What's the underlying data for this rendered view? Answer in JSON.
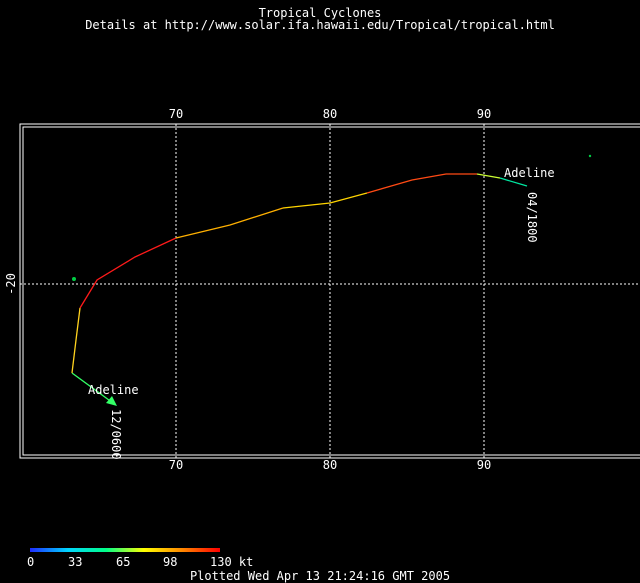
{
  "header": {
    "title": "Tropical Cyclones",
    "subtitle": "Details at http://www.solar.ifa.hawaii.edu/Tropical/tropical.html"
  },
  "axes": {
    "lon_ticks_top": [
      "70",
      "80",
      "90"
    ],
    "lon_ticks_bottom": [
      "70",
      "80",
      "90"
    ],
    "lat_tick": "-20"
  },
  "storm": {
    "name_end": "Adeline",
    "name_start": "Adeline",
    "label_end": "04/1800",
    "label_start": "12/0600"
  },
  "legend": {
    "scale_labels": [
      "0",
      "33",
      "65",
      "98",
      "130 kt"
    ],
    "colors": [
      "#1e2cff",
      "#00d6ff",
      "#00ff88",
      "#ffff00",
      "#ff8800",
      "#ff0000"
    ]
  },
  "footer": {
    "plotted": "Plotted Wed Apr 13 21:24:16 GMT 2005"
  }
}
